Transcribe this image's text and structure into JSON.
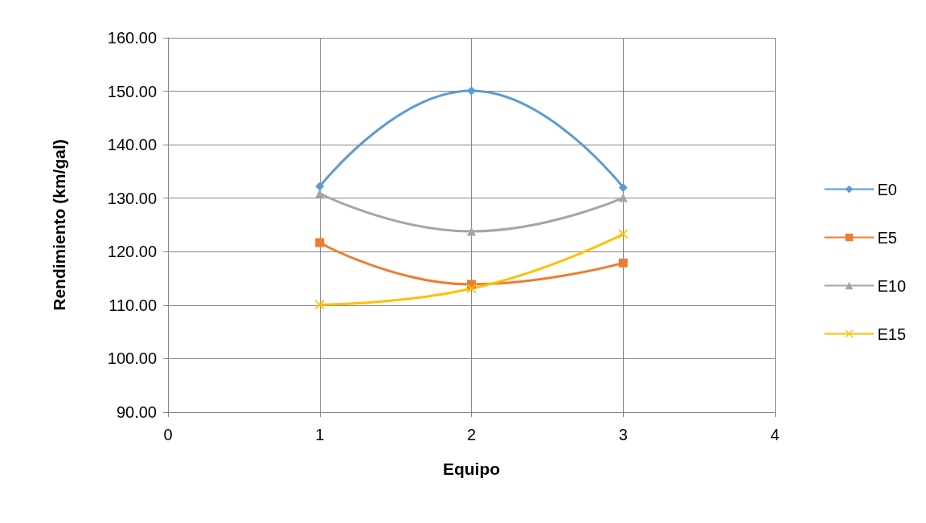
{
  "chart_data": {
    "type": "line",
    "xlabel": "Equipo",
    "ylabel": "Rendimiento (km/gal)",
    "x": [
      1,
      2,
      3
    ],
    "series": [
      {
        "name": "E0",
        "color": "#5b9bd5",
        "marker": "diamond",
        "values": [
          132.2,
          150.1,
          132.0
        ]
      },
      {
        "name": "E5",
        "color": "#ed7d31",
        "marker": "square",
        "values": [
          121.7,
          113.9,
          117.9
        ]
      },
      {
        "name": "E10",
        "color": "#a5a5a5",
        "marker": "triangle",
        "values": [
          130.9,
          123.8,
          130.1
        ]
      },
      {
        "name": "E15",
        "color": "#ffc000",
        "marker": "cross",
        "values": [
          110.1,
          113.1,
          123.3
        ]
      }
    ],
    "xlim": [
      0,
      4
    ],
    "xticks": [
      0,
      1,
      2,
      3,
      4
    ],
    "ylim": [
      90,
      160
    ],
    "yticks": [
      {
        "value": 90,
        "label": "90.00"
      },
      {
        "value": 100,
        "label": "100.00"
      },
      {
        "value": 110,
        "label": "110.00"
      },
      {
        "value": 120,
        "label": "120.00"
      },
      {
        "value": 130,
        "label": "130.00"
      },
      {
        "value": 140,
        "label": "140.00"
      },
      {
        "value": 150,
        "label": "150.00"
      },
      {
        "value": 160,
        "label": "160.00"
      }
    ],
    "grid": true,
    "legend": "right"
  }
}
